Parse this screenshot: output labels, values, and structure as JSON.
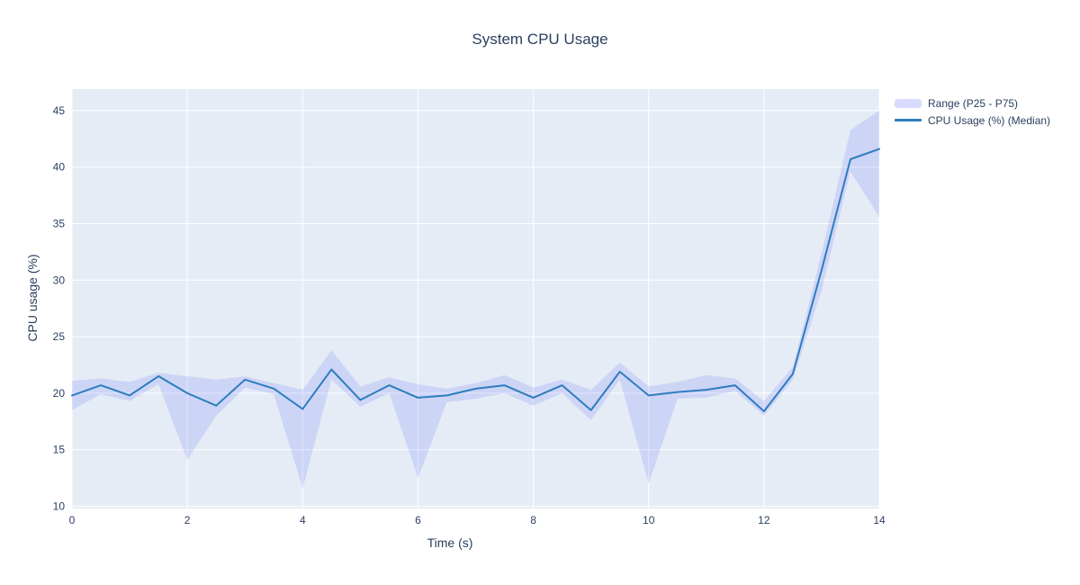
{
  "title": "System CPU Usage",
  "colors": {
    "text": "#2a3f5f",
    "plot_background": "#e5ecf6",
    "grid": "#ffffff",
    "band": "rgba(99,110,250,0.18)",
    "band_legend": "rgba(99,110,250,0.25)",
    "line": "#2e7dbe",
    "figure_background": "#ffffff"
  },
  "legend": {
    "items": [
      {
        "label": "Range (P25 - P75)",
        "swatch": "band"
      },
      {
        "label": "CPU Usage (%) (Median)",
        "swatch": "line"
      }
    ]
  },
  "chart_data": {
    "type": "line",
    "title": "System CPU Usage",
    "xlabel": "Time (s)",
    "ylabel": "CPU usage (%)",
    "xlim": [
      0,
      14
    ],
    "ylim": [
      9.8,
      46.9
    ],
    "xticks": [
      0,
      2,
      4,
      6,
      8,
      10,
      12,
      14
    ],
    "yticks": [
      10,
      15,
      20,
      25,
      30,
      35,
      40,
      45
    ],
    "grid": true,
    "legend_position": "top-right-outside",
    "x": [
      0,
      0.5,
      1,
      1.5,
      2,
      2.5,
      3,
      3.5,
      4,
      4.5,
      5,
      5.5,
      6,
      6.5,
      7,
      7.5,
      8,
      8.5,
      9,
      9.5,
      10,
      10.5,
      11,
      11.5,
      12,
      12.5,
      13,
      13.5,
      14
    ],
    "series": [
      {
        "name": "Range (P25 - P75)",
        "type": "band",
        "color": "rgba(99,110,250,0.18)",
        "upper": [
          21.1,
          21.3,
          21.0,
          21.8,
          21.5,
          21.2,
          21.5,
          20.9,
          20.3,
          23.8,
          20.6,
          21.4,
          20.8,
          20.4,
          20.9,
          21.6,
          20.5,
          21.2,
          20.3,
          22.7,
          20.6,
          21.0,
          21.6,
          21.3,
          19.3,
          22.3,
          32.4,
          43.3,
          45.0
        ],
        "lower": [
          18.5,
          19.9,
          19.3,
          20.8,
          14.1,
          18.0,
          20.5,
          19.9,
          11.6,
          21.2,
          18.8,
          20.0,
          12.5,
          19.2,
          19.5,
          20.0,
          18.9,
          20.0,
          17.6,
          21.2,
          12.0,
          19.5,
          19.6,
          20.2,
          18.0,
          21.2,
          29.1,
          39.6,
          35.6
        ]
      },
      {
        "name": "CPU Usage (%) (Median)",
        "type": "line",
        "color": "#2e7dbe",
        "values": [
          19.8,
          20.7,
          19.8,
          21.5,
          20.0,
          18.9,
          21.2,
          20.4,
          18.6,
          22.1,
          19.4,
          20.7,
          19.6,
          19.8,
          20.4,
          20.7,
          19.6,
          20.7,
          18.5,
          21.9,
          19.8,
          20.1,
          20.3,
          20.7,
          18.4,
          21.7,
          30.9,
          40.7,
          41.6
        ]
      }
    ]
  }
}
